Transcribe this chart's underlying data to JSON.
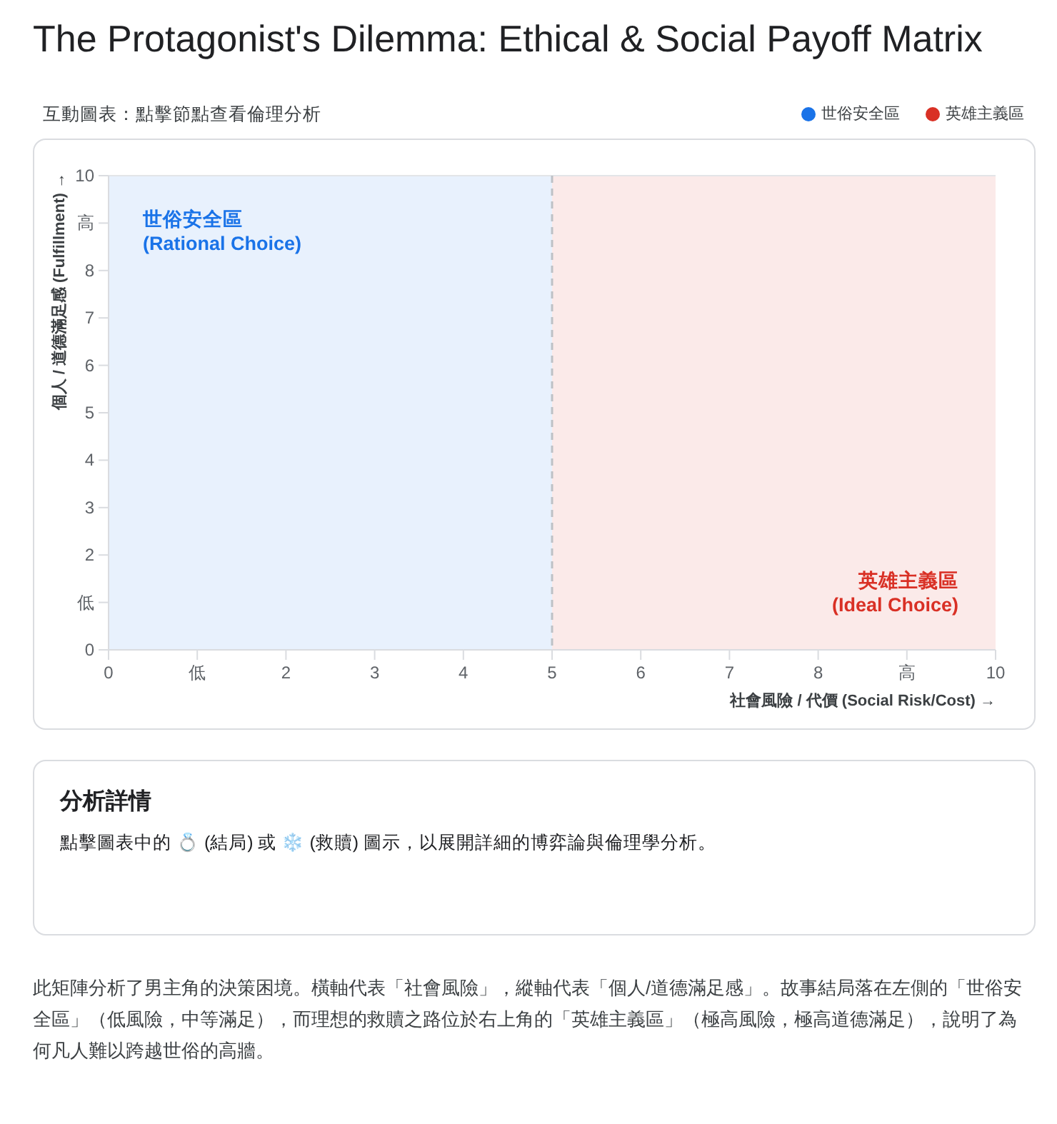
{
  "chart_data": {
    "type": "area",
    "title": "The Protagonist's Dilemma: Ethical & Social Payoff Matrix",
    "subtitle": "互動圖表：點擊節點查看倫理分析",
    "xlabel": "社會風險 / 代價 (Social Risk/Cost) →",
    "ylabel": "個人 / 道德滿足感 (Fulfillment) →",
    "series": [
      {
        "name": "世俗安全區",
        "color": "#1a73e8",
        "x": [
          0,
          5
        ],
        "values": [
          10,
          10
        ]
      },
      {
        "name": "英雄主義區",
        "color": "#d93025",
        "x": [
          5,
          10
        ],
        "values": [
          10,
          10
        ]
      }
    ],
    "xlim": [
      0,
      10
    ],
    "ylim": [
      0,
      10
    ],
    "xticks": [
      0,
      {
        "value": 1,
        "label": "低"
      },
      2,
      3,
      4,
      5,
      6,
      7,
      8,
      {
        "value": 9,
        "label": "高"
      },
      10
    ],
    "yticks": [
      0,
      {
        "value": 1,
        "label": "低"
      },
      2,
      3,
      4,
      5,
      6,
      7,
      8,
      {
        "value": 9,
        "label": "高"
      },
      10
    ],
    "ref_lines": [
      {
        "axis": "x",
        "value": 5,
        "color": "#bdc1c6",
        "line_style": "dashed"
      }
    ],
    "legend": "top right",
    "grid": false,
    "annotations": [
      "世俗安全區\n(Rational Choice)",
      "英雄主義區\n(Ideal Choice)",
      "分析詳情",
      "點擊圖表中的 💍 (結局) 或 ❄️ (救贖) 圖示，以展開詳細的博弈論與倫理學分析。",
      "此矩陣分析了男主角的決策困境。橫軸代表「社會風險」，縱軸代表「個人/道德滿足感」。故事結局落在左側的「世俗安全區」（低風險，中等滿足），而理想的救贖之路位於右上角的「英雄主義區」（極高風險，極高道德滿足），說明了為何凡人難以跨越世俗的高牆。"
    ]
  }
}
